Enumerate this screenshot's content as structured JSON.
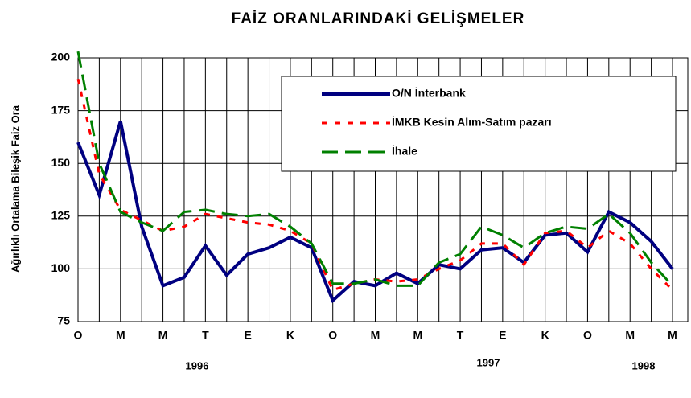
{
  "chart_data": {
    "type": "line",
    "title": "FAİZ ORANLARINDAKİ GELİŞMELER",
    "y_label": "Ağırlıklı Ortalama Bileşik Faiz Ora",
    "categories": [
      "O",
      null,
      "M",
      null,
      "M",
      null,
      "T",
      null,
      "E",
      null,
      "K",
      null,
      "O",
      null,
      "M",
      null,
      "M",
      null,
      "T",
      null,
      "E",
      null,
      "K",
      null,
      "O",
      null,
      "M",
      null,
      "M"
    ],
    "annotations": [
      "1996",
      "1997",
      "1998"
    ],
    "series": [
      {
        "name": "O/N İnterbank",
        "color": "#000080",
        "style": "solid",
        "values": [
          160,
          135,
          170,
          120,
          92,
          96,
          111,
          97,
          107,
          110,
          115,
          110,
          85,
          94,
          92,
          98,
          93,
          102,
          100,
          109,
          110,
          103,
          116,
          117,
          108,
          127,
          122,
          113,
          100
        ]
      },
      {
        "name": "İMKB Kesin Alım-Satım pazarı",
        "color": "#ff0000",
        "style": "dotted",
        "values": [
          190,
          145,
          128,
          123,
          118,
          120,
          126,
          124,
          122,
          121,
          118,
          112,
          90,
          93,
          95,
          94,
          95,
          100,
          104,
          112,
          112,
          102,
          117,
          118,
          110,
          118,
          112,
          100,
          90
        ]
      },
      {
        "name": "İhale",
        "color": "#008000",
        "style": "dashed",
        "values": [
          203,
          150,
          127,
          122,
          118,
          127,
          128,
          126,
          125,
          126,
          120,
          112,
          93,
          93,
          95,
          92,
          92,
          103,
          107,
          120,
          116,
          110,
          117,
          120,
          119,
          126,
          117,
          103,
          92
        ]
      }
    ],
    "ylim": [
      75,
      200
    ],
    "yticks": [
      75,
      100,
      125,
      150,
      175,
      200
    ],
    "grid": true,
    "legend": "upper right"
  }
}
